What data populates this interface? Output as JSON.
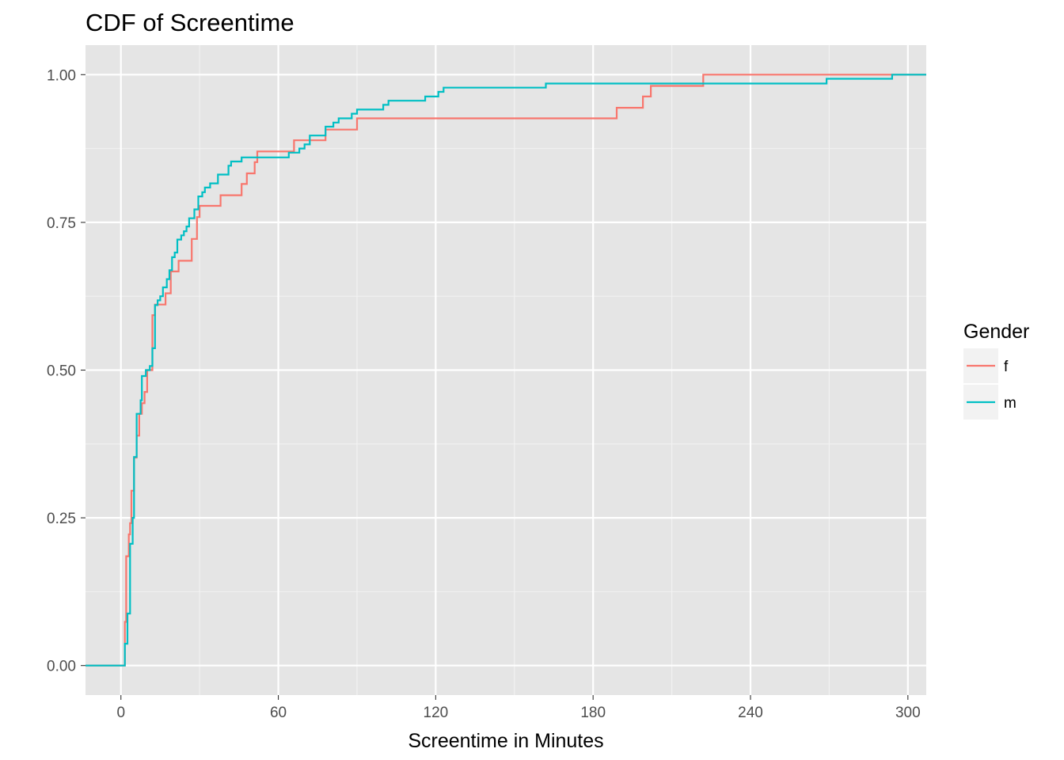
{
  "chart_data": {
    "type": "line",
    "step": true,
    "title": "CDF of Screentime",
    "xlabel": "Screentime in Minutes",
    "ylabel": "",
    "xlim": [
      -13.5,
      307
    ],
    "ylim": [
      -0.05,
      1.05
    ],
    "xticks": [
      0,
      60,
      120,
      180,
      240,
      300
    ],
    "xtick_labels": [
      "0",
      "60",
      "120",
      "180",
      "240",
      "300"
    ],
    "yticks": [
      0,
      0.25,
      0.5,
      0.75,
      1.0
    ],
    "ytick_labels": [
      "0.00",
      "0.25",
      "0.50",
      "0.75",
      "1.00"
    ],
    "grid": true,
    "background": "#e5e5e5",
    "legend": {
      "title": "Gender",
      "position": "right"
    },
    "series": [
      {
        "name": "f",
        "color": "#f8766d",
        "points": [
          [
            -13.5,
            0
          ],
          [
            1.5,
            0
          ],
          [
            1.5,
            0.074
          ],
          [
            2,
            0.074
          ],
          [
            2,
            0.185
          ],
          [
            3,
            0.185
          ],
          [
            3,
            0.222
          ],
          [
            3.5,
            0.222
          ],
          [
            3.5,
            0.241
          ],
          [
            4,
            0.241
          ],
          [
            4,
            0.296
          ],
          [
            5,
            0.296
          ],
          [
            5,
            0.352
          ],
          [
            6,
            0.352
          ],
          [
            6,
            0.389
          ],
          [
            7,
            0.389
          ],
          [
            7,
            0.426
          ],
          [
            8,
            0.426
          ],
          [
            8,
            0.444
          ],
          [
            9,
            0.444
          ],
          [
            9,
            0.463
          ],
          [
            10,
            0.463
          ],
          [
            10,
            0.5
          ],
          [
            12,
            0.5
          ],
          [
            12,
            0.593
          ],
          [
            13,
            0.593
          ],
          [
            13,
            0.611
          ],
          [
            17,
            0.611
          ],
          [
            17,
            0.63
          ],
          [
            19,
            0.63
          ],
          [
            19,
            0.667
          ],
          [
            22,
            0.667
          ],
          [
            22,
            0.685
          ],
          [
            27,
            0.685
          ],
          [
            27,
            0.722
          ],
          [
            29,
            0.722
          ],
          [
            29,
            0.759
          ],
          [
            30,
            0.759
          ],
          [
            30,
            0.778
          ],
          [
            38,
            0.778
          ],
          [
            38,
            0.796
          ],
          [
            46,
            0.796
          ],
          [
            46,
            0.815
          ],
          [
            48,
            0.815
          ],
          [
            48,
            0.833
          ],
          [
            51,
            0.833
          ],
          [
            51,
            0.852
          ],
          [
            52,
            0.852
          ],
          [
            52,
            0.87
          ],
          [
            66,
            0.87
          ],
          [
            66,
            0.889
          ],
          [
            78,
            0.889
          ],
          [
            78,
            0.907
          ],
          [
            90,
            0.907
          ],
          [
            90,
            0.926
          ],
          [
            189,
            0.926
          ],
          [
            189,
            0.944
          ],
          [
            199,
            0.944
          ],
          [
            199,
            0.963
          ],
          [
            202,
            0.963
          ],
          [
            202,
            0.981
          ],
          [
            222,
            0.981
          ],
          [
            222,
            1.0
          ],
          [
            307,
            1.0
          ]
        ]
      },
      {
        "name": "m",
        "color": "#00bfc4",
        "points": [
          [
            -13.5,
            0
          ],
          [
            1.5,
            0
          ],
          [
            1.5,
            0.037
          ],
          [
            2.5,
            0.037
          ],
          [
            2.5,
            0.088
          ],
          [
            3.5,
            0.088
          ],
          [
            3.5,
            0.206
          ],
          [
            4.5,
            0.206
          ],
          [
            4.5,
            0.25
          ],
          [
            5,
            0.25
          ],
          [
            5,
            0.353
          ],
          [
            6,
            0.353
          ],
          [
            6,
            0.426
          ],
          [
            7.5,
            0.426
          ],
          [
            7.5,
            0.449
          ],
          [
            8,
            0.449
          ],
          [
            8,
            0.49
          ],
          [
            9.5,
            0.49
          ],
          [
            9.5,
            0.5
          ],
          [
            11,
            0.5
          ],
          [
            11,
            0.507
          ],
          [
            12,
            0.507
          ],
          [
            12,
            0.537
          ],
          [
            13,
            0.537
          ],
          [
            13,
            0.61
          ],
          [
            14,
            0.61
          ],
          [
            14,
            0.618
          ],
          [
            15,
            0.618
          ],
          [
            15,
            0.625
          ],
          [
            16,
            0.625
          ],
          [
            16,
            0.64
          ],
          [
            17.5,
            0.64
          ],
          [
            17.5,
            0.654
          ],
          [
            18.5,
            0.654
          ],
          [
            18.5,
            0.669
          ],
          [
            19.5,
            0.669
          ],
          [
            19.5,
            0.691
          ],
          [
            20.5,
            0.691
          ],
          [
            20.5,
            0.699
          ],
          [
            21.5,
            0.699
          ],
          [
            21.5,
            0.721
          ],
          [
            23,
            0.721
          ],
          [
            23,
            0.728
          ],
          [
            24,
            0.728
          ],
          [
            24,
            0.735
          ],
          [
            25,
            0.735
          ],
          [
            25,
            0.743
          ],
          [
            26,
            0.743
          ],
          [
            26,
            0.757
          ],
          [
            28,
            0.757
          ],
          [
            28,
            0.772
          ],
          [
            29.5,
            0.772
          ],
          [
            29.5,
            0.794
          ],
          [
            31,
            0.794
          ],
          [
            31,
            0.801
          ],
          [
            32,
            0.801
          ],
          [
            32,
            0.809
          ],
          [
            34,
            0.809
          ],
          [
            34,
            0.816
          ],
          [
            37,
            0.816
          ],
          [
            37,
            0.831
          ],
          [
            41,
            0.831
          ],
          [
            41,
            0.846
          ],
          [
            42,
            0.846
          ],
          [
            42,
            0.853
          ],
          [
            46,
            0.853
          ],
          [
            46,
            0.86
          ],
          [
            64,
            0.86
          ],
          [
            64,
            0.868
          ],
          [
            68,
            0.868
          ],
          [
            68,
            0.875
          ],
          [
            70,
            0.875
          ],
          [
            70,
            0.882
          ],
          [
            72,
            0.882
          ],
          [
            72,
            0.897
          ],
          [
            78,
            0.897
          ],
          [
            78,
            0.912
          ],
          [
            81,
            0.912
          ],
          [
            81,
            0.919
          ],
          [
            83,
            0.919
          ],
          [
            83,
            0.926
          ],
          [
            88,
            0.926
          ],
          [
            88,
            0.934
          ],
          [
            90,
            0.934
          ],
          [
            90,
            0.941
          ],
          [
            100,
            0.941
          ],
          [
            100,
            0.949
          ],
          [
            102,
            0.949
          ],
          [
            102,
            0.956
          ],
          [
            116,
            0.956
          ],
          [
            116,
            0.963
          ],
          [
            121,
            0.963
          ],
          [
            121,
            0.971
          ],
          [
            123,
            0.971
          ],
          [
            123,
            0.978
          ],
          [
            162,
            0.978
          ],
          [
            162,
            0.985
          ],
          [
            269,
            0.985
          ],
          [
            269,
            0.993
          ],
          [
            294,
            0.993
          ],
          [
            294,
            1.0
          ],
          [
            307,
            1.0
          ]
        ]
      }
    ]
  }
}
